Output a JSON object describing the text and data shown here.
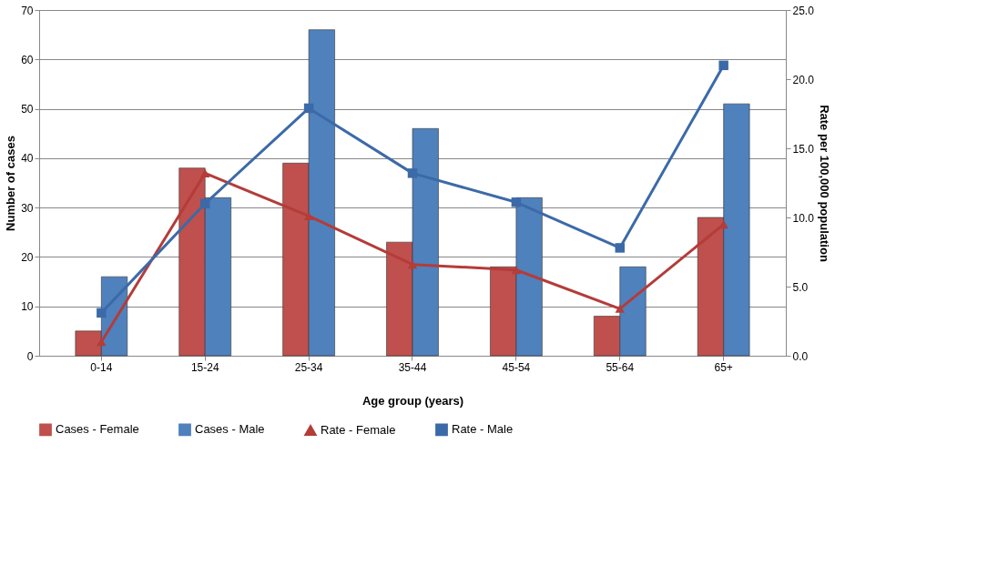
{
  "chart_data": {
    "type": "bar",
    "xlabel": "Age group (years)",
    "ylabel": "Number of cases",
    "y2label": "Rate per 100,000 population",
    "categories": [
      "0-14",
      "15-24",
      "25-34",
      "35-44",
      "45-54",
      "55-64",
      "65+"
    ],
    "series": [
      {
        "name": "Cases - Female",
        "type": "bar",
        "color": "#c0504d",
        "values": [
          5,
          38,
          39,
          23,
          18,
          8,
          28
        ]
      },
      {
        "name": "Cases - Male",
        "type": "bar",
        "color": "#4f81bd",
        "values": [
          16,
          32,
          66,
          46,
          32,
          18,
          51
        ]
      },
      {
        "name": "Rate - Female",
        "type": "line",
        "axis": "y2",
        "marker": "triangle",
        "color": "#b43c39",
        "values": [
          1.0,
          13.2,
          10.1,
          6.6,
          6.2,
          3.4,
          9.5
        ]
      },
      {
        "name": "Rate - Male",
        "type": "line",
        "axis": "y2",
        "marker": "square",
        "color": "#3c6aa8",
        "values": [
          3.1,
          11.0,
          17.9,
          13.2,
          11.1,
          7.8,
          21.0
        ]
      }
    ],
    "ylim": [
      0,
      70
    ],
    "yticks": [
      0,
      10,
      20,
      30,
      40,
      50,
      60,
      70
    ],
    "y2lim": [
      0,
      25
    ],
    "y2ticks": [
      {
        "value": 0,
        "label": "0.0"
      },
      {
        "value": 5,
        "label": "5.0"
      },
      {
        "value": 10,
        "label": "10.0"
      },
      {
        "value": 15,
        "label": "15.0"
      },
      {
        "value": 20,
        "label": "20.0"
      },
      {
        "value": 25,
        "label": "25.0"
      }
    ],
    "grid": "y",
    "legend": "bottom"
  }
}
